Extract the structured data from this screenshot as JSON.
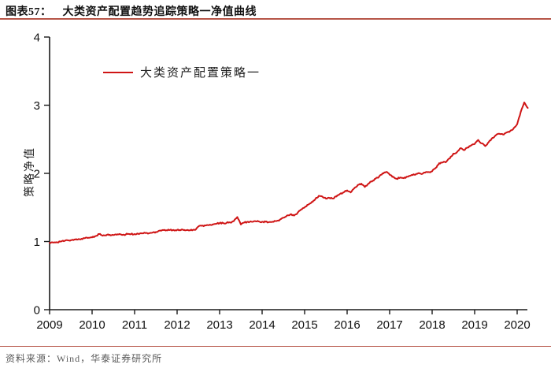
{
  "header": {
    "figure_label": "图表57：",
    "title": "大类资产配置趋势追踪策略一净值曲线"
  },
  "legend": {
    "label": "大类资产配置策略一"
  },
  "footer": {
    "source": "资料来源：Wind，华泰证券研究所"
  },
  "colors": {
    "line": "#cf1515",
    "title_rule": "#b65548",
    "footer_rule": "#b65548",
    "axis": "#1a1a1a"
  },
  "chart_data": {
    "type": "line",
    "title": "大类资产配置趋势追踪策略一净值曲线",
    "xlabel": "",
    "ylabel": "策略净值",
    "grid": false,
    "legend_position": "top-left-inside",
    "xlim": [
      2009,
      2020.4
    ],
    "ylim": [
      0,
      4
    ],
    "yticks": [
      0,
      1,
      2,
      3,
      4
    ],
    "xticks": [
      2009,
      2010,
      2011,
      2012,
      2013,
      2014,
      2015,
      2016,
      2017,
      2018,
      2019,
      2020
    ],
    "series": [
      {
        "name": "大类资产配置策略一",
        "color": "#cf1515",
        "start_year": 2009,
        "points_per_year": 12,
        "values": [
          0.98,
          0.985,
          0.99,
          1.0,
          1.005,
          1.02,
          1.02,
          1.03,
          1.03,
          1.04,
          1.05,
          1.055,
          1.06,
          1.08,
          1.11,
          1.085,
          1.09,
          1.1,
          1.095,
          1.1,
          1.105,
          1.1,
          1.11,
          1.11,
          1.11,
          1.115,
          1.12,
          1.125,
          1.12,
          1.13,
          1.14,
          1.16,
          1.17,
          1.165,
          1.17,
          1.17,
          1.17,
          1.165,
          1.17,
          1.17,
          1.175,
          1.17,
          1.22,
          1.23,
          1.235,
          1.24,
          1.25,
          1.26,
          1.27,
          1.27,
          1.275,
          1.28,
          1.3,
          1.36,
          1.25,
          1.28,
          1.29,
          1.29,
          1.3,
          1.295,
          1.29,
          1.29,
          1.285,
          1.29,
          1.3,
          1.32,
          1.35,
          1.38,
          1.4,
          1.38,
          1.42,
          1.47,
          1.5,
          1.54,
          1.58,
          1.62,
          1.67,
          1.66,
          1.63,
          1.64,
          1.63,
          1.66,
          1.7,
          1.72,
          1.75,
          1.72,
          1.78,
          1.83,
          1.85,
          1.8,
          1.85,
          1.88,
          1.92,
          1.95,
          2.0,
          2.02,
          1.98,
          1.95,
          1.92,
          1.94,
          1.93,
          1.95,
          1.97,
          1.98,
          2.0,
          1.99,
          2.01,
          2.02,
          2.03,
          2.08,
          2.15,
          2.16,
          2.17,
          2.22,
          2.29,
          2.31,
          2.37,
          2.34,
          2.38,
          2.41,
          2.43,
          2.49,
          2.44,
          2.4,
          2.46,
          2.52,
          2.56,
          2.58,
          2.57,
          2.6,
          2.62,
          2.66,
          2.72,
          2.9,
          3.04,
          2.96
        ]
      }
    ]
  }
}
